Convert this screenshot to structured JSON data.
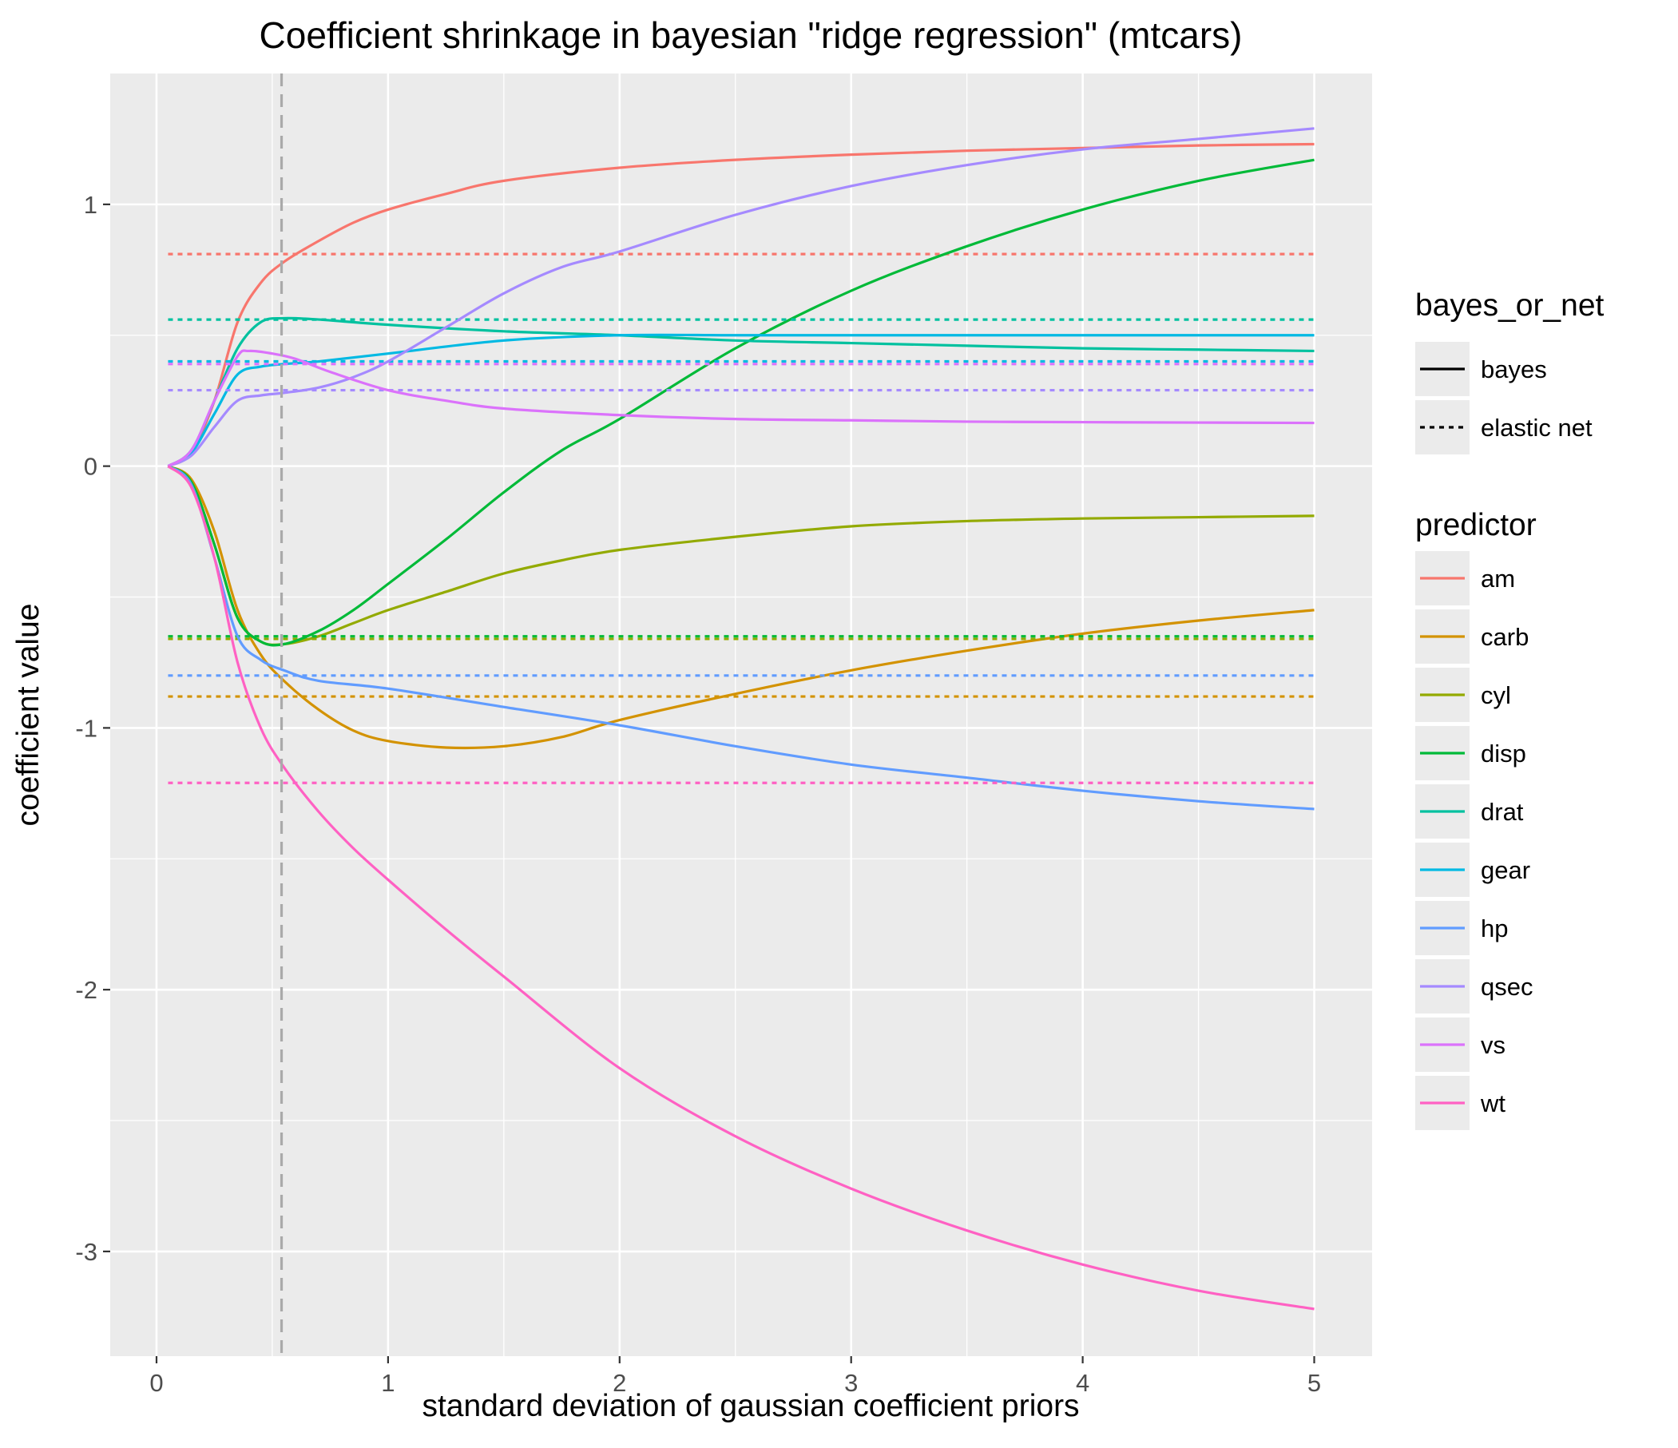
{
  "chart_data": {
    "type": "line",
    "title": "Coefficient shrinkage in bayesian \"ridge regression\" (mtcars)",
    "xlabel": "standard deviation of gaussian coefficient priors",
    "ylabel": "coefficient value",
    "xlim": [
      -0.2,
      5.25
    ],
    "ylim": [
      -3.4,
      1.5
    ],
    "x_ticks": [
      0,
      1,
      2,
      3,
      4,
      5
    ],
    "x_tick_labels": [
      "0",
      "1",
      "2",
      "3",
      "4",
      "5"
    ],
    "y_ticks": [
      -3,
      -2,
      -1,
      0,
      1
    ],
    "y_tick_labels": [
      "-3",
      "-2",
      "-1",
      "0",
      "1"
    ],
    "grid": true,
    "legend_position": "right",
    "reference_line": {
      "x": 0.54,
      "style": "dashed",
      "color": "#aaaaaa"
    },
    "legends": [
      {
        "title": "bayes_or_net",
        "entries": [
          {
            "label": "bayes",
            "style": "solid"
          },
          {
            "label": "elastic net",
            "style": "dotted"
          }
        ]
      },
      {
        "title": "predictor",
        "entries": [
          {
            "label": "am",
            "color": "#F8766D"
          },
          {
            "label": "carb",
            "color": "#D39200"
          },
          {
            "label": "cyl",
            "color": "#93AA00"
          },
          {
            "label": "disp",
            "color": "#00BA38"
          },
          {
            "label": "drat",
            "color": "#00C19F"
          },
          {
            "label": "gear",
            "color": "#00B9E3"
          },
          {
            "label": "hp",
            "color": "#619CFF"
          },
          {
            "label": "qsec",
            "color": "#A58AFF"
          },
          {
            "label": "vs",
            "color": "#DB72FB"
          },
          {
            "label": "wt",
            "color": "#FF61C3"
          }
        ]
      }
    ],
    "series": [
      {
        "predictor": "am",
        "type": "bayes",
        "color": "#F8766D",
        "points": [
          [
            0.05,
            0
          ],
          [
            0.15,
            0.05
          ],
          [
            0.25,
            0.25
          ],
          [
            0.35,
            0.55
          ],
          [
            0.45,
            0.7
          ],
          [
            0.55,
            0.78
          ],
          [
            0.7,
            0.86
          ],
          [
            0.85,
            0.93
          ],
          [
            1,
            0.98
          ],
          [
            1.25,
            1.04
          ],
          [
            1.5,
            1.09
          ],
          [
            2,
            1.14
          ],
          [
            2.5,
            1.17
          ],
          [
            3,
            1.19
          ],
          [
            3.5,
            1.205
          ],
          [
            4,
            1.215
          ],
          [
            4.5,
            1.225
          ],
          [
            5,
            1.23
          ]
        ]
      },
      {
        "predictor": "am",
        "type": "elastic net",
        "color": "#F8766D",
        "points": [
          [
            0.05,
            0.81
          ],
          [
            5,
            0.81
          ]
        ]
      },
      {
        "predictor": "carb",
        "type": "bayes",
        "color": "#D39200",
        "points": [
          [
            0.05,
            0
          ],
          [
            0.15,
            -0.05
          ],
          [
            0.25,
            -0.25
          ],
          [
            0.35,
            -0.55
          ],
          [
            0.45,
            -0.72
          ],
          [
            0.55,
            -0.82
          ],
          [
            0.7,
            -0.93
          ],
          [
            0.85,
            -1.01
          ],
          [
            1,
            -1.05
          ],
          [
            1.25,
            -1.075
          ],
          [
            1.5,
            -1.07
          ],
          [
            1.75,
            -1.035
          ],
          [
            2,
            -0.97
          ],
          [
            2.5,
            -0.87
          ],
          [
            3,
            -0.78
          ],
          [
            3.5,
            -0.705
          ],
          [
            4,
            -0.64
          ],
          [
            4.5,
            -0.59
          ],
          [
            5,
            -0.55
          ]
        ]
      },
      {
        "predictor": "carb",
        "type": "elastic net",
        "color": "#D39200",
        "points": [
          [
            0.05,
            -0.88
          ],
          [
            5,
            -0.88
          ]
        ]
      },
      {
        "predictor": "cyl",
        "type": "bayes",
        "color": "#93AA00",
        "points": [
          [
            0.05,
            0
          ],
          [
            0.15,
            -0.06
          ],
          [
            0.25,
            -0.3
          ],
          [
            0.35,
            -0.58
          ],
          [
            0.45,
            -0.67
          ],
          [
            0.55,
            -0.68
          ],
          [
            0.7,
            -0.65
          ],
          [
            0.85,
            -0.6
          ],
          [
            1,
            -0.55
          ],
          [
            1.25,
            -0.48
          ],
          [
            1.5,
            -0.41
          ],
          [
            1.75,
            -0.36
          ],
          [
            2,
            -0.32
          ],
          [
            2.5,
            -0.27
          ],
          [
            3,
            -0.23
          ],
          [
            3.5,
            -0.21
          ],
          [
            4,
            -0.2
          ],
          [
            4.5,
            -0.195
          ],
          [
            5,
            -0.19
          ]
        ]
      },
      {
        "predictor": "cyl",
        "type": "elastic net",
        "color": "#93AA00",
        "points": [
          [
            0.05,
            -0.66
          ],
          [
            5,
            -0.66
          ]
        ]
      },
      {
        "predictor": "disp",
        "type": "bayes",
        "color": "#00BA38",
        "points": [
          [
            0.05,
            0
          ],
          [
            0.15,
            -0.06
          ],
          [
            0.25,
            -0.3
          ],
          [
            0.35,
            -0.58
          ],
          [
            0.45,
            -0.67
          ],
          [
            0.55,
            -0.68
          ],
          [
            0.7,
            -0.63
          ],
          [
            0.85,
            -0.55
          ],
          [
            1,
            -0.45
          ],
          [
            1.25,
            -0.28
          ],
          [
            1.5,
            -0.1
          ],
          [
            1.75,
            0.06
          ],
          [
            2,
            0.18
          ],
          [
            2.5,
            0.45
          ],
          [
            3,
            0.67
          ],
          [
            3.5,
            0.84
          ],
          [
            4,
            0.98
          ],
          [
            4.5,
            1.09
          ],
          [
            5,
            1.17
          ]
        ]
      },
      {
        "predictor": "disp",
        "type": "elastic net",
        "color": "#00BA38",
        "points": [
          [
            0.05,
            -0.65
          ],
          [
            5,
            -0.65
          ]
        ]
      },
      {
        "predictor": "drat",
        "type": "bayes",
        "color": "#00C19F",
        "points": [
          [
            0.05,
            0
          ],
          [
            0.15,
            0.06
          ],
          [
            0.25,
            0.25
          ],
          [
            0.35,
            0.45
          ],
          [
            0.45,
            0.55
          ],
          [
            0.55,
            0.565
          ],
          [
            0.7,
            0.56
          ],
          [
            1,
            0.54
          ],
          [
            1.5,
            0.515
          ],
          [
            2,
            0.5
          ],
          [
            2.5,
            0.48
          ],
          [
            3,
            0.47
          ],
          [
            3.5,
            0.46
          ],
          [
            4,
            0.45
          ],
          [
            4.5,
            0.445
          ],
          [
            5,
            0.44
          ]
        ]
      },
      {
        "predictor": "drat",
        "type": "elastic net",
        "color": "#00C19F",
        "points": [
          [
            0.05,
            0.56
          ],
          [
            5,
            0.56
          ]
        ]
      },
      {
        "predictor": "gear",
        "type": "bayes",
        "color": "#00B9E3",
        "points": [
          [
            0.05,
            0
          ],
          [
            0.15,
            0.05
          ],
          [
            0.25,
            0.2
          ],
          [
            0.35,
            0.35
          ],
          [
            0.45,
            0.38
          ],
          [
            0.55,
            0.39
          ],
          [
            0.7,
            0.4
          ],
          [
            1,
            0.43
          ],
          [
            1.5,
            0.48
          ],
          [
            2,
            0.5
          ],
          [
            2.5,
            0.5
          ],
          [
            3,
            0.5
          ],
          [
            4,
            0.5
          ],
          [
            5,
            0.5
          ]
        ]
      },
      {
        "predictor": "gear",
        "type": "elastic net",
        "color": "#00B9E3",
        "points": [
          [
            0.05,
            0.4
          ],
          [
            5,
            0.4
          ]
        ]
      },
      {
        "predictor": "hp",
        "type": "bayes",
        "color": "#619CFF",
        "points": [
          [
            0.05,
            0
          ],
          [
            0.15,
            -0.07
          ],
          [
            0.25,
            -0.35
          ],
          [
            0.35,
            -0.65
          ],
          [
            0.45,
            -0.74
          ],
          [
            0.55,
            -0.78
          ],
          [
            0.7,
            -0.82
          ],
          [
            1,
            -0.85
          ],
          [
            1.5,
            -0.92
          ],
          [
            2,
            -0.99
          ],
          [
            2.5,
            -1.07
          ],
          [
            3,
            -1.14
          ],
          [
            3.5,
            -1.19
          ],
          [
            4,
            -1.24
          ],
          [
            4.5,
            -1.28
          ],
          [
            5,
            -1.31
          ]
        ]
      },
      {
        "predictor": "hp",
        "type": "elastic net",
        "color": "#619CFF",
        "points": [
          [
            0.05,
            -0.8
          ],
          [
            5,
            -0.8
          ]
        ]
      },
      {
        "predictor": "qsec",
        "type": "bayes",
        "color": "#A58AFF",
        "points": [
          [
            0.05,
            0
          ],
          [
            0.15,
            0.04
          ],
          [
            0.25,
            0.15
          ],
          [
            0.35,
            0.25
          ],
          [
            0.45,
            0.27
          ],
          [
            0.55,
            0.28
          ],
          [
            0.7,
            0.3
          ],
          [
            0.85,
            0.34
          ],
          [
            1,
            0.4
          ],
          [
            1.25,
            0.53
          ],
          [
            1.5,
            0.66
          ],
          [
            1.75,
            0.76
          ],
          [
            2,
            0.82
          ],
          [
            2.5,
            0.96
          ],
          [
            3,
            1.07
          ],
          [
            3.5,
            1.15
          ],
          [
            4,
            1.21
          ],
          [
            4.5,
            1.25
          ],
          [
            5,
            1.29
          ]
        ]
      },
      {
        "predictor": "qsec",
        "type": "elastic net",
        "color": "#A58AFF",
        "points": [
          [
            0.05,
            0.29
          ],
          [
            5,
            0.29
          ]
        ]
      },
      {
        "predictor": "vs",
        "type": "bayes",
        "color": "#DB72FB",
        "points": [
          [
            0.05,
            0
          ],
          [
            0.15,
            0.06
          ],
          [
            0.25,
            0.25
          ],
          [
            0.35,
            0.42
          ],
          [
            0.4,
            0.44
          ],
          [
            0.5,
            0.43
          ],
          [
            0.6,
            0.41
          ],
          [
            0.75,
            0.36
          ],
          [
            1,
            0.29
          ],
          [
            1.25,
            0.25
          ],
          [
            1.5,
            0.22
          ],
          [
            2,
            0.195
          ],
          [
            2.5,
            0.18
          ],
          [
            3,
            0.175
          ],
          [
            3.5,
            0.17
          ],
          [
            4,
            0.168
          ],
          [
            5,
            0.165
          ]
        ]
      },
      {
        "predictor": "vs",
        "type": "elastic net",
        "color": "#DB72FB",
        "points": [
          [
            0.05,
            0.39
          ],
          [
            5,
            0.39
          ]
        ]
      },
      {
        "predictor": "wt",
        "type": "bayes",
        "color": "#FF61C3",
        "points": [
          [
            0.05,
            0
          ],
          [
            0.15,
            -0.08
          ],
          [
            0.25,
            -0.35
          ],
          [
            0.35,
            -0.75
          ],
          [
            0.45,
            -1.0
          ],
          [
            0.55,
            -1.15
          ],
          [
            0.7,
            -1.32
          ],
          [
            0.85,
            -1.46
          ],
          [
            1,
            -1.58
          ],
          [
            1.25,
            -1.77
          ],
          [
            1.5,
            -1.95
          ],
          [
            2,
            -2.3
          ],
          [
            2.5,
            -2.56
          ],
          [
            3,
            -2.76
          ],
          [
            3.5,
            -2.92
          ],
          [
            4,
            -3.05
          ],
          [
            4.5,
            -3.15
          ],
          [
            5,
            -3.22
          ]
        ]
      },
      {
        "predictor": "wt",
        "type": "elastic net",
        "color": "#FF61C3",
        "points": [
          [
            0.05,
            -1.21
          ],
          [
            5,
            -1.21
          ]
        ]
      }
    ]
  }
}
